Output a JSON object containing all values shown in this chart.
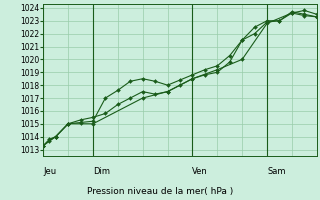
{
  "xlabel": "Pression niveau de la mer( hPa )",
  "bg_color": "#cceedd",
  "grid_color": "#99ccaa",
  "line_color": "#1a5c1a",
  "marker_color": "#1a5c1a",
  "ylim": [
    1013,
    1024
  ],
  "yticks": [
    1013,
    1014,
    1015,
    1016,
    1017,
    1018,
    1019,
    1020,
    1021,
    1022,
    1023,
    1024
  ],
  "x_day_labels": [
    "Jeu",
    "Dim",
    "Ven",
    "Sam"
  ],
  "series1_x": [
    0,
    6,
    12,
    24,
    36,
    48,
    60,
    72,
    84,
    96,
    108,
    120,
    132,
    144,
    156,
    168,
    180,
    192,
    204,
    216,
    228,
    240,
    252,
    264
  ],
  "series1_y": [
    1013.3,
    1013.8,
    1014.0,
    1015.0,
    1015.1,
    1015.2,
    1017.0,
    1017.6,
    1018.3,
    1018.5,
    1018.3,
    1018.0,
    1018.4,
    1018.8,
    1019.2,
    1019.5,
    1020.3,
    1021.5,
    1022.0,
    1022.9,
    1023.0,
    1023.6,
    1023.8,
    1023.5
  ],
  "series2_x": [
    0,
    6,
    12,
    24,
    36,
    48,
    60,
    72,
    84,
    96,
    108,
    120,
    132,
    144,
    156,
    168,
    180,
    192,
    204,
    216,
    228,
    240,
    252,
    264
  ],
  "series2_y": [
    1013.3,
    1013.7,
    1014.0,
    1015.0,
    1015.3,
    1015.5,
    1015.8,
    1016.5,
    1017.0,
    1017.5,
    1017.3,
    1017.5,
    1018.0,
    1018.5,
    1018.8,
    1019.0,
    1019.8,
    1021.5,
    1022.5,
    1023.0,
    1023.0,
    1023.7,
    1023.5,
    1023.3
  ],
  "series3_x": [
    0,
    12,
    24,
    48,
    96,
    120,
    144,
    168,
    192,
    216,
    240,
    252,
    264
  ],
  "series3_y": [
    1013.3,
    1014.0,
    1015.0,
    1015.0,
    1017.0,
    1017.5,
    1018.5,
    1019.2,
    1020.0,
    1022.8,
    1023.6,
    1023.4,
    1023.3
  ],
  "xlim": [
    0,
    264
  ]
}
